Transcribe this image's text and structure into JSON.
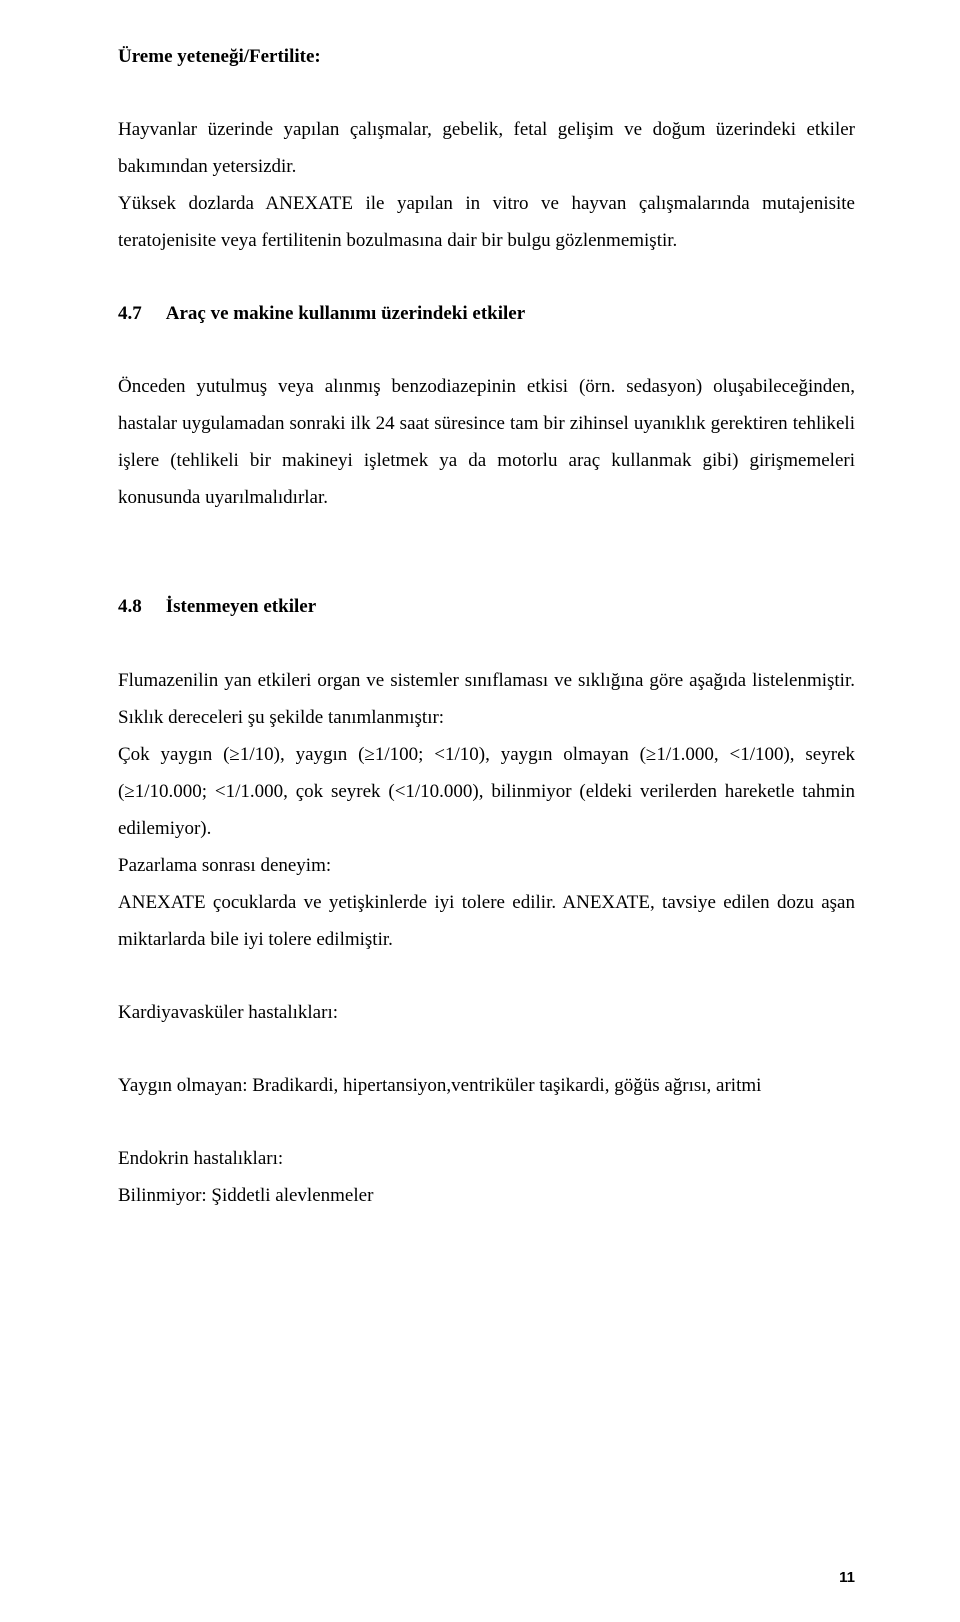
{
  "heading_fertility": "Üreme yeteneği/Fertilite:",
  "fertility_p1": "Hayvanlar üzerinde yapılan çalışmalar, gebelik, fetal gelişim ve doğum üzerindeki etkiler bakımından yetersizdir.",
  "fertility_p2": "Yüksek dozlarda ANEXATE ile yapılan in vitro ve hayvan çalışmalarında mutajenisite teratojenisite veya fertilitenin bozulmasına dair bir bulgu gözlenmemiştir.",
  "sec47_num": "4.7",
  "sec47_title": "Araç ve makine kullanımı üzerindeki etkiler",
  "sec47_p1": "Önceden yutulmuş veya alınmış benzodiazepinin etkisi (örn. sedasyon) oluşabileceğinden, hastalar uygulamadan sonraki ilk 24 saat süresince tam bir zihinsel uyanıklık gerektiren tehlikeli işlere (tehlikeli bir makineyi işletmek ya da motorlu araç kullanmak gibi) girişmemeleri konusunda uyarılmalıdırlar.",
  "sec48_num": "4.8",
  "sec48_title": "İstenmeyen etkiler",
  "sec48_p1": "Flumazenilin yan etkileri organ ve sistemler sınıflaması ve sıklığına göre aşağıda listelenmiştir. Sıklık dereceleri şu şekilde tanımlanmıştır:",
  "sec48_p2": "Çok yaygın (≥1/10), yaygın (≥1/100; <1/10), yaygın olmayan (≥1/1.000, <1/100), seyrek (≥1/10.000; <1/1.000, çok seyrek (<1/10.000), bilinmiyor (eldeki verilerden hareketle tahmin edilemiyor).",
  "sec48_p3": "Pazarlama sonrası deneyim:",
  "sec48_p4": "ANEXATE çocuklarda ve yetişkinlerde iyi tolere edilir. ANEXATE, tavsiye edilen dozu aşan miktarlarda bile iyi tolere edilmiştir.",
  "cardio_heading": "Kardiyavasküler hastalıkları:",
  "cardio_p1": "Yaygın olmayan:  Bradikardi, hipertansiyon,ventriküler taşikardi, göğüs ağrısı, aritmi",
  "endo_heading": "Endokrin hastalıkları:",
  "endo_p1": "Bilinmiyor: Şiddetli alevlenmeler",
  "page_number": "11"
}
